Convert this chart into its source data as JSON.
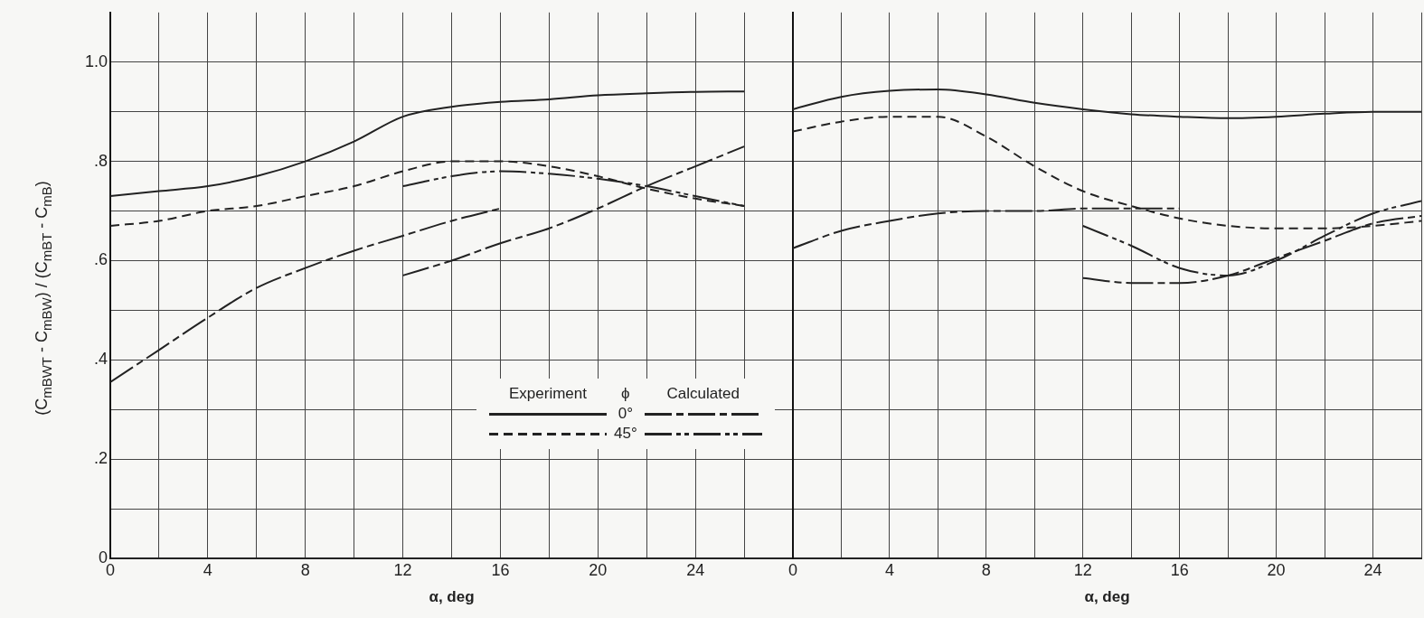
{
  "chart_data": [
    {
      "type": "line",
      "xlabel": "α, deg",
      "ylabel": "(C$_{mBWT}$ - C$_{mBW}$) / (C$_{mBT}$ - C$_{mB}$)",
      "legend_title": "ϕ",
      "annotations": [
        "Experiment",
        "Calculated"
      ],
      "legend": "bottom right",
      "grid": true,
      "xlim": [
        0,
        28
      ],
      "xticks": [
        0,
        {
          "value": 2,
          "label": null
        },
        4,
        {
          "value": 6,
          "label": null
        },
        8,
        {
          "value": 10,
          "label": null
        },
        12,
        {
          "value": 14,
          "label": null
        },
        16,
        {
          "value": 18,
          "label": null
        },
        20,
        {
          "value": 22,
          "label": null
        },
        24,
        {
          "value": 26,
          "label": null
        }
      ],
      "ylim": [
        0,
        1.1
      ],
      "yticks": [
        0,
        {
          "value": 0.1,
          "label": null
        },
        {
          "value": 0.2,
          "label": ".2"
        },
        {
          "value": 0.3,
          "label": null
        },
        {
          "value": 0.4,
          "label": ".4"
        },
        {
          "value": 0.5,
          "label": null
        },
        {
          "value": 0.6,
          "label": ".6"
        },
        {
          "value": 0.7,
          "label": null
        },
        {
          "value": 0.8,
          "label": ".8"
        },
        {
          "value": 0.9,
          "label": null
        },
        {
          "value": 1.0,
          "label": "1.0"
        }
      ],
      "series": [
        {
          "name": "0°",
          "color": "#222222",
          "line_style": "solid",
          "x": [
            0,
            2,
            4,
            6,
            8,
            10,
            12,
            14,
            16,
            18,
            20,
            22,
            24,
            26
          ],
          "values": [
            0.73,
            0.74,
            0.75,
            0.77,
            0.8,
            0.84,
            0.89,
            0.91,
            0.92,
            0.925,
            0.933,
            0.937,
            0.94,
            0.941
          ]
        },
        {
          "name": "45°",
          "color": "#222222",
          "line_style": "dashed",
          "x": [
            0,
            2,
            4,
            6,
            8,
            10,
            12,
            14,
            15,
            16,
            18,
            20,
            22,
            24,
            26
          ],
          "values": [
            0.67,
            0.68,
            0.7,
            0.71,
            0.73,
            0.75,
            0.78,
            0.8,
            0.8,
            0.8,
            0.79,
            0.77,
            0.745,
            0.725,
            0.71
          ]
        },
        {
          "color": "#222222",
          "line_style": "dashdot",
          "x": [
            0,
            2,
            4,
            6,
            8,
            10,
            12,
            14,
            16
          ],
          "values": [
            0.355,
            0.42,
            0.485,
            0.545,
            0.585,
            0.62,
            0.65,
            0.68,
            0.705
          ]
        },
        {
          "color": "#222222",
          "line_style": "dashdotdot",
          "x": [
            12,
            14,
            16,
            18,
            20,
            22,
            24,
            26
          ],
          "values": [
            0.75,
            0.77,
            0.78,
            0.775,
            0.765,
            0.75,
            0.73,
            0.71
          ]
        },
        {
          "color": "#222222",
          "line_style": "dashdot",
          "x": [
            12,
            14,
            16,
            18,
            20,
            22,
            24,
            26
          ],
          "values": [
            0.57,
            0.6,
            0.635,
            0.665,
            0.705,
            0.75,
            0.79,
            0.83
          ]
        }
      ]
    },
    {
      "type": "line",
      "xlabel": "α, deg",
      "grid": true,
      "tick_labels": "x",
      "xlim": [
        0,
        26
      ],
      "xticks": [
        0,
        {
          "value": 2,
          "label": null
        },
        4,
        {
          "value": 6,
          "label": null
        },
        8,
        {
          "value": 10,
          "label": null
        },
        12,
        {
          "value": 14,
          "label": null
        },
        16,
        {
          "value": 18,
          "label": null
        },
        20,
        {
          "value": 22,
          "label": null
        },
        24,
        {
          "value": 26,
          "label": null
        }
      ],
      "ylim": [
        0,
        1.1
      ],
      "yticks": [
        0,
        0.1,
        0.2,
        0.3,
        0.4,
        0.5,
        0.6,
        0.7,
        0.8,
        0.9,
        1.0
      ],
      "series": [
        {
          "color": "#222222",
          "line_style": "solid",
          "x": [
            0,
            2,
            4,
            6,
            8,
            10,
            12,
            14,
            16,
            18,
            20,
            22,
            24,
            26
          ],
          "values": [
            0.905,
            0.93,
            0.942,
            0.945,
            0.935,
            0.918,
            0.905,
            0.895,
            0.89,
            0.887,
            0.89,
            0.896,
            0.9,
            0.9
          ]
        },
        {
          "color": "#222222",
          "line_style": "dashed",
          "x": [
            0,
            2,
            4,
            6,
            8,
            10,
            12,
            14,
            16,
            18,
            20,
            22,
            24,
            26
          ],
          "values": [
            0.86,
            0.88,
            0.89,
            0.89,
            0.85,
            0.79,
            0.74,
            0.71,
            0.685,
            0.67,
            0.665,
            0.665,
            0.67,
            0.68
          ]
        },
        {
          "color": "#222222",
          "line_style": "dashdot",
          "x": [
            0,
            2,
            4,
            6,
            8,
            10,
            12,
            14,
            16
          ],
          "values": [
            0.625,
            0.66,
            0.68,
            0.695,
            0.7,
            0.7,
            0.705,
            0.705,
            0.705
          ]
        },
        {
          "color": "#222222",
          "line_style": "dashdotdot",
          "x": [
            12,
            14,
            16,
            18,
            20,
            22,
            24,
            26
          ],
          "values": [
            0.67,
            0.63,
            0.585,
            0.57,
            0.6,
            0.65,
            0.695,
            0.72
          ]
        },
        {
          "color": "#222222",
          "line_style": "dashdot",
          "x": [
            12,
            14,
            16,
            18,
            20,
            22,
            24,
            26
          ],
          "values": [
            0.565,
            0.555,
            0.555,
            0.57,
            0.605,
            0.64,
            0.675,
            0.69
          ]
        }
      ]
    }
  ]
}
